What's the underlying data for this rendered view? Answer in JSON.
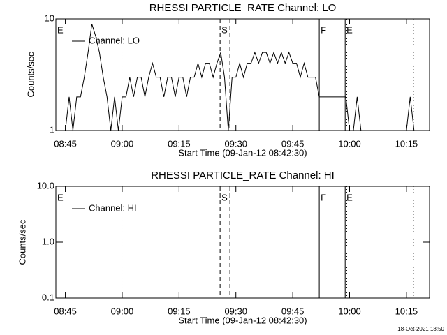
{
  "chart_data": [
    {
      "type": "line",
      "title": "RHESSI PARTICLE_RATE Channel: LO",
      "xlabel": "Start Time (09-Jan-12 08:42:30)",
      "ylabel": "Counts/sec",
      "log_y": true,
      "xlim": [
        "08:42:30",
        "10:21:06"
      ],
      "ylim": [
        1,
        10
      ],
      "yticks": [
        1,
        10
      ],
      "xticks": [
        "08:45",
        "09:00",
        "09:15",
        "09:30",
        "09:45",
        "10:00",
        "10:15"
      ],
      "legend": "upper left",
      "x": [
        "08:45",
        "08:46",
        "08:47",
        "08:48",
        "08:49",
        "08:50",
        "08:51",
        "08:52",
        "08:53",
        "08:54",
        "08:55",
        "08:56",
        "08:57",
        "08:58",
        "08:59",
        "09:00",
        "09:01",
        "09:02",
        "09:03",
        "09:04",
        "09:05",
        "09:06",
        "09:07",
        "09:08",
        "09:09",
        "09:10",
        "09:11",
        "09:12",
        "09:13",
        "09:14",
        "09:15",
        "09:16",
        "09:17",
        "09:18",
        "09:19",
        "09:20",
        "09:21",
        "09:22",
        "09:23",
        "09:24",
        "09:25",
        "09:26",
        "09:27",
        "09:28",
        "09:29",
        "09:30",
        "09:31",
        "09:32",
        "09:33",
        "09:34",
        "09:35",
        "09:36",
        "09:37",
        "09:38",
        "09:39",
        "09:40",
        "09:41",
        "09:42",
        "09:43",
        "09:44",
        "09:45",
        "09:46",
        "09:47",
        "09:48",
        "09:49",
        "09:50",
        "09:51",
        "09:52",
        "09:53",
        "09:54",
        "09:55",
        "09:56",
        "09:57",
        "09:58",
        "09:59",
        "10:00",
        "10:01",
        "10:02",
        "10:03",
        "10:04",
        "10:05",
        "10:06",
        "10:07",
        "10:08",
        "10:09",
        "10:10",
        "10:11",
        "10:12",
        "10:13",
        "10:14",
        "10:15",
        "10:16",
        "10:17"
      ],
      "series": [
        {
          "name": "Channel: LO",
          "color": "#000000",
          "values": [
            1,
            2,
            1,
            2,
            2,
            3,
            5,
            9,
            7,
            5,
            3,
            2,
            1,
            2,
            1,
            2,
            2,
            3,
            2,
            3,
            3,
            2,
            3,
            4,
            3,
            3,
            2,
            3,
            3,
            2,
            3,
            3,
            2,
            3,
            3,
            4,
            3,
            4,
            4,
            3,
            4,
            5,
            3,
            1,
            3,
            3,
            4,
            3,
            4,
            4,
            5,
            4,
            5,
            5,
            4,
            5,
            4,
            5,
            4,
            5,
            4,
            4,
            3,
            4,
            3,
            3,
            3,
            2,
            2,
            2,
            2,
            2,
            2,
            2,
            2,
            1,
            1,
            2,
            1,
            1,
            1,
            1,
            1,
            1,
            1,
            1,
            1,
            1,
            1,
            1,
            1,
            2,
            1
          ]
        }
      ],
      "markers": [
        {
          "x": "08:42:30",
          "style": "solid",
          "label": "E"
        },
        {
          "x": "08:59:55",
          "style": "dotted"
        },
        {
          "x": "09:25:50",
          "style": "dashed",
          "label": "S"
        },
        {
          "x": "09:28:25",
          "style": "dashed"
        },
        {
          "x": "09:52:00",
          "style": "solid",
          "label": "F"
        },
        {
          "x": "09:58:50",
          "style": "solid",
          "label": "E"
        },
        {
          "x": "09:59:15",
          "style": "dotted"
        },
        {
          "x": "10:16:50",
          "style": "dotted"
        }
      ]
    },
    {
      "type": "line",
      "title": "RHESSI PARTICLE_RATE Channel: HI",
      "xlabel": "Start Time (09-Jan-12 08:42:30)",
      "ylabel": "Counts/sec",
      "log_y": true,
      "xlim": [
        "08:42:30",
        "10:21:06"
      ],
      "ylim": [
        0.1,
        10
      ],
      "yticks": [
        0.1,
        {
          "value": 1,
          "label": "1.0"
        },
        {
          "value": 10,
          "label": "10.0"
        }
      ],
      "xticks": [
        "08:45",
        "09:00",
        "09:15",
        "09:30",
        "09:45",
        "10:00",
        "10:15"
      ],
      "legend": "upper left",
      "x": [],
      "series": [
        {
          "name": "Channel: HI",
          "color": "#000000",
          "values": []
        }
      ],
      "markers": [
        {
          "x": "08:42:30",
          "style": "solid",
          "label": "E"
        },
        {
          "x": "08:59:55",
          "style": "dotted"
        },
        {
          "x": "09:25:50",
          "style": "dashed",
          "label": "S"
        },
        {
          "x": "09:28:25",
          "style": "dashed"
        },
        {
          "x": "09:52:00",
          "style": "solid",
          "label": "F"
        },
        {
          "x": "09:58:50",
          "style": "solid",
          "label": "E"
        },
        {
          "x": "09:59:15",
          "style": "dotted"
        },
        {
          "x": "10:16:50",
          "style": "dotted"
        }
      ]
    }
  ],
  "footer": "18-Oct-2021 18:50"
}
